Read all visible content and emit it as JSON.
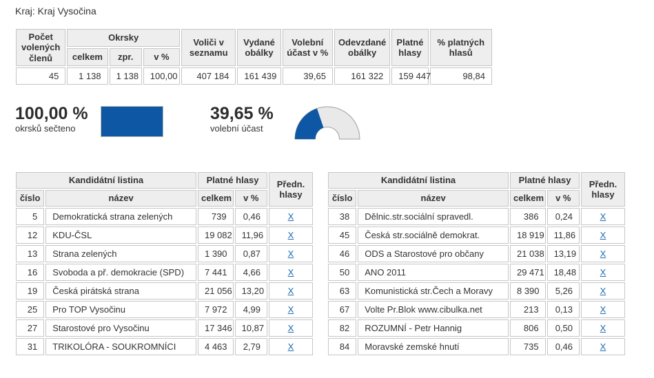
{
  "page": {
    "title": "Kraj: Kraj Vysočina"
  },
  "colors": {
    "accent_blue": "#0d57a5",
    "gauge_track": "#e9e9e9",
    "gauge_outline": "#9e9e9e",
    "link_blue": "#1a6ab3"
  },
  "summary": {
    "headers": {
      "seats": "Počet volených členů",
      "districts": "Okrsky",
      "districts_total": "celkem",
      "districts_processed": "zpr.",
      "districts_pct": "v %",
      "voters": "Voliči v seznamu",
      "envelopes_issued": "Vydané obálky",
      "turnout_pct": "Volební účast v %",
      "envelopes_returned": "Odevzdané obálky",
      "valid_votes": "Platné hlasy",
      "valid_votes_pct": "% platných hlasů"
    },
    "values": [
      "45",
      "1 138",
      "1 138",
      "100,00",
      "407 184",
      "161 439",
      "39,65",
      "161 322",
      "159 447",
      "98,84"
    ]
  },
  "gauges": {
    "counted": {
      "value": "100,00 %",
      "label": "okrsků sečteno",
      "percent": 100
    },
    "turnout": {
      "value": "39,65 %",
      "label": "volební účast",
      "percent": 39.65
    }
  },
  "party_headers": {
    "list": "Kandidátní listina",
    "valid_votes": "Platné hlasy",
    "pref_votes": "Předn. hlasy",
    "number": "číslo",
    "name": "název",
    "total": "celkem",
    "pct": "v %"
  },
  "parties_left": [
    {
      "number": "5",
      "name": "Demokratická strana zelených",
      "total": "739",
      "pct": "0,46",
      "pref": "X"
    },
    {
      "number": "12",
      "name": "KDU-ČSL",
      "total": "19 082",
      "pct": "11,96",
      "pref": "X"
    },
    {
      "number": "13",
      "name": "Strana zelených",
      "total": "1 390",
      "pct": "0,87",
      "pref": "X"
    },
    {
      "number": "16",
      "name": "Svoboda a př. demokracie (SPD)",
      "total": "7 441",
      "pct": "4,66",
      "pref": "X"
    },
    {
      "number": "19",
      "name": "Česká pirátská strana",
      "total": "21 056",
      "pct": "13,20",
      "pref": "X"
    },
    {
      "number": "25",
      "name": "Pro TOP Vysočinu",
      "total": "7 972",
      "pct": "4,99",
      "pref": "X"
    },
    {
      "number": "27",
      "name": "Starostové pro Vysočinu",
      "total": "17 346",
      "pct": "10,87",
      "pref": "X"
    },
    {
      "number": "31",
      "name": "TRIKOLÓRA - SOUKROMNÍCI",
      "total": "4 463",
      "pct": "2,79",
      "pref": "X"
    }
  ],
  "parties_right": [
    {
      "number": "38",
      "name": "Dělnic.str.sociální spravedl.",
      "total": "386",
      "pct": "0,24",
      "pref": "X"
    },
    {
      "number": "45",
      "name": "Česká str.sociálně demokrat.",
      "total": "18 919",
      "pct": "11,86",
      "pref": "X"
    },
    {
      "number": "46",
      "name": "ODS a Starostové pro občany",
      "total": "21 038",
      "pct": "13,19",
      "pref": "X"
    },
    {
      "number": "50",
      "name": "ANO 2011",
      "total": "29 471",
      "pct": "18,48",
      "pref": "X"
    },
    {
      "number": "63",
      "name": "Komunistická str.Čech a Moravy",
      "total": "8 390",
      "pct": "5,26",
      "pref": "X"
    },
    {
      "number": "67",
      "name": "Volte Pr.Blok www.cibulka.net",
      "total": "213",
      "pct": "0,13",
      "pref": "X"
    },
    {
      "number": "82",
      "name": "ROZUMNÍ - Petr Hannig",
      "total": "806",
      "pct": "0,50",
      "pref": "X"
    },
    {
      "number": "84",
      "name": "Moravské zemské hnutí",
      "total": "735",
      "pct": "0,46",
      "pref": "X"
    }
  ]
}
